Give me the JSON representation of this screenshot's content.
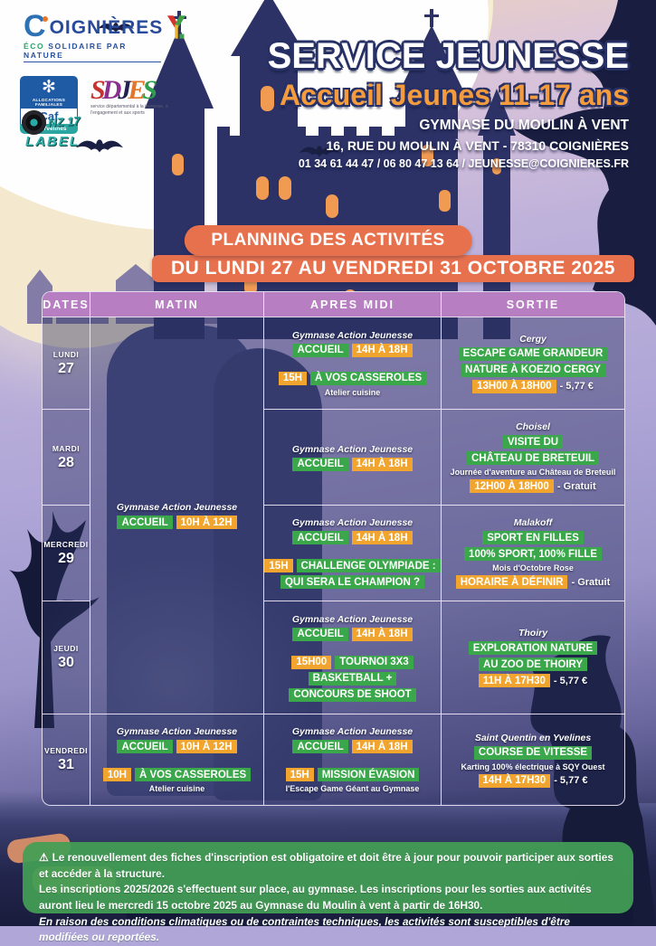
{
  "colors": {
    "banner_orange": "#e8714d",
    "badge_green": "#3aa74a",
    "badge_orange": "#f1a52f",
    "header_purple": "#b77fc2",
    "footer_green": "#43a055",
    "title_orange": "#f49b3d",
    "night_navy": "#2c3266"
  },
  "logos": {
    "coignieres": {
      "initial": "C",
      "name": "OIGNIÈRES",
      "tagline_eco": "ÉCO",
      "tagline_rest": " SOLIDAIRE PAR NATURE"
    },
    "caf": {
      "flake": "✻",
      "top": "ALLOCATIONS FAMILIALES",
      "name": "Caf",
      "sub": "des Yvelines"
    },
    "sdjes": {
      "letters": [
        {
          "ch": "S",
          "color": "#c8322e"
        },
        {
          "ch": "D",
          "color": "#8a2f8f"
        },
        {
          "ch": "J",
          "color": "#22224f"
        },
        {
          "ch": "E",
          "color": "#e2762a"
        },
        {
          "ch": "S",
          "color": "#2f9e4c"
        }
      ],
      "subtitle": "service départemental à la jeunesse, à l'engagement et aux sports"
    },
    "nz17": {
      "line1": "NZ 17",
      "line2": "LABEL"
    }
  },
  "header": {
    "title": "SERVICE JEUNESSE",
    "subtitle": "Accueil Jeunes 11-17 ans",
    "venue": "GYMNASE DU MOULIN À VENT",
    "address": "16, RUE DU MOULIN À VENT - 78310 COIGNIÈRES",
    "contact": "01 34 61 44 47 / 06 80 47 13 64 / JEUNESSE@COIGNIERES.FR"
  },
  "banner": {
    "pill": "PLANNING DES ACTIVITÉS",
    "bar": "DU LUNDI 27 AU VENDREDI 31 OCTOBRE 2025"
  },
  "table": {
    "headers": [
      "DATES",
      "MATIN",
      "APRES MIDI",
      "SORTIE"
    ],
    "matin_main": [
      [
        {
          "s": "v",
          "t": "Gymnase Action Jeunesse"
        }
      ],
      [
        {
          "s": "g",
          "t": "ACCUEIL"
        },
        {
          "s": "o",
          "t": "10H À 12H"
        }
      ]
    ],
    "rows": [
      {
        "day": "LUNDI",
        "date": "27",
        "pm": [
          [
            {
              "s": "v",
              "t": "Gymnase Action Jeunesse"
            }
          ],
          [
            {
              "s": "g",
              "t": "ACCUEIL"
            },
            {
              "s": "o",
              "t": "14H À 18H"
            }
          ],
          [
            {
              "s": "gap"
            }
          ],
          [
            {
              "s": "o",
              "t": "15H"
            },
            {
              "s": "g",
              "t": "À VOS CASSEROLES"
            }
          ],
          [
            {
              "s": "n",
              "t": "Atelier cuisine"
            }
          ]
        ],
        "sortie": [
          [
            {
              "s": "v",
              "t": "Cergy"
            }
          ],
          [
            {
              "s": "g",
              "t": "ESCAPE GAME GRANDEUR"
            }
          ],
          [
            {
              "s": "g",
              "t": "NATURE À KOEZIO CERGY"
            }
          ],
          [
            {
              "s": "o",
              "t": "13H00 À 18H00"
            },
            {
              "s": "p",
              "t": "- 5,77 €"
            }
          ]
        ]
      },
      {
        "day": "MARDI",
        "date": "28",
        "pm": [
          [
            {
              "s": "v",
              "t": "Gymnase Action Jeunesse"
            }
          ],
          [
            {
              "s": "g",
              "t": "ACCUEIL"
            },
            {
              "s": "o",
              "t": "14H À 18H"
            }
          ]
        ],
        "sortie": [
          [
            {
              "s": "v",
              "t": "Choisel"
            }
          ],
          [
            {
              "s": "g",
              "t": "VISITE DU"
            }
          ],
          [
            {
              "s": "g",
              "t": "CHÂTEAU DE BRETEUIL"
            }
          ],
          [
            {
              "s": "n",
              "t": "Journée d'aventure au Château de Breteuil"
            }
          ],
          [
            {
              "s": "o",
              "t": "12H00 À 18H00"
            },
            {
              "s": "p",
              "t": "- Gratuit"
            }
          ]
        ]
      },
      {
        "day": "MERCREDI",
        "date": "29",
        "pm": [
          [
            {
              "s": "v",
              "t": "Gymnase Action Jeunesse"
            }
          ],
          [
            {
              "s": "g",
              "t": "ACCUEIL"
            },
            {
              "s": "o",
              "t": "14H À 18H"
            }
          ],
          [
            {
              "s": "gap"
            }
          ],
          [
            {
              "s": "o",
              "t": "15H"
            },
            {
              "s": "g",
              "t": "CHALLENGE OLYMPIADE :"
            }
          ],
          [
            {
              "s": "g",
              "t": "QUI SERA LE CHAMPION ?"
            }
          ]
        ],
        "sortie": [
          [
            {
              "s": "v",
              "t": "Malakoff"
            }
          ],
          [
            {
              "s": "g",
              "t": "SPORT EN FILLES"
            }
          ],
          [
            {
              "s": "g",
              "t": "100% SPORT, 100% FILLE"
            }
          ],
          [
            {
              "s": "n",
              "t": "Mois d'Octobre Rose"
            }
          ],
          [
            {
              "s": "o",
              "t": "HORAIRE À DÉFINIR"
            },
            {
              "s": "p",
              "t": "- Gratuit"
            }
          ]
        ]
      },
      {
        "day": "JEUDI",
        "date": "30",
        "pm": [
          [
            {
              "s": "v",
              "t": "Gymnase Action Jeunesse"
            }
          ],
          [
            {
              "s": "g",
              "t": "ACCUEIL"
            },
            {
              "s": "o",
              "t": "14H À 18H"
            }
          ],
          [
            {
              "s": "gap"
            }
          ],
          [
            {
              "s": "o",
              "t": "15H00"
            },
            {
              "s": "g",
              "t": "TOURNOI 3X3"
            }
          ],
          [
            {
              "s": "g",
              "t": "BASKETBALL +"
            }
          ],
          [
            {
              "s": "g",
              "t": "CONCOURS DE SHOOT"
            }
          ]
        ],
        "sortie": [
          [
            {
              "s": "v",
              "t": "Thoiry"
            }
          ],
          [
            {
              "s": "g",
              "t": "EXPLORATION NATURE"
            }
          ],
          [
            {
              "s": "g",
              "t": "AU ZOO DE THOIRY"
            }
          ],
          [
            {
              "s": "o",
              "t": "11H À 17H30"
            },
            {
              "s": "p",
              "t": "- 5,77 €"
            }
          ]
        ]
      },
      {
        "day": "VENDREDI",
        "date": "31",
        "matin": [
          [
            {
              "s": "v",
              "t": "Gymnase Action Jeunesse"
            }
          ],
          [
            {
              "s": "g",
              "t": "ACCUEIL"
            },
            {
              "s": "o",
              "t": "10H À 12H"
            }
          ],
          [
            {
              "s": "gap"
            }
          ],
          [
            {
              "s": "o",
              "t": "10H"
            },
            {
              "s": "g",
              "t": "À VOS CASSEROLES"
            }
          ],
          [
            {
              "s": "n",
              "t": "Atelier cuisine"
            }
          ]
        ],
        "pm": [
          [
            {
              "s": "v",
              "t": "Gymnase Action Jeunesse"
            }
          ],
          [
            {
              "s": "g",
              "t": "ACCUEIL"
            },
            {
              "s": "o",
              "t": "14H À 18H"
            }
          ],
          [
            {
              "s": "gap"
            }
          ],
          [
            {
              "s": "o",
              "t": "15H"
            },
            {
              "s": "g",
              "t": "MISSION ÉVASION"
            }
          ],
          [
            {
              "s": "n",
              "t": "l'Escape Game Géant au Gymnase"
            }
          ]
        ],
        "sortie": [
          [
            {
              "s": "v",
              "t": "Saint Quentin en Yvelines"
            }
          ],
          [
            {
              "s": "g",
              "t": "COURSE DE VITESSE"
            }
          ],
          [
            {
              "s": "n",
              "t": "Karting 100% électrique à SQY Ouest"
            }
          ],
          [
            {
              "s": "o",
              "t": "14H À 17H30"
            },
            {
              "s": "p",
              "t": "- 5,77 €"
            }
          ]
        ]
      }
    ]
  },
  "footer": {
    "warning_icon": "⚠",
    "line1": "Le renouvellement des fiches d'inscription est obligatoire et doit être à jour pour pouvoir participer aux sorties et accéder à la structure.",
    "line2_regular": "Les inscriptions 2025/2026 s'effectuent sur place, au gymnase. Les inscriptions pour les sorties aux activités auront lieu ",
    "line2_bold": "le mercredi 15 octobre 2025 au Gymnase du Moulin à vent à partir de 16H30.",
    "line3": "En raison des conditions climatiques ou de contraintes techniques, les activités sont susceptibles d'être modifiées ou reportées."
  }
}
